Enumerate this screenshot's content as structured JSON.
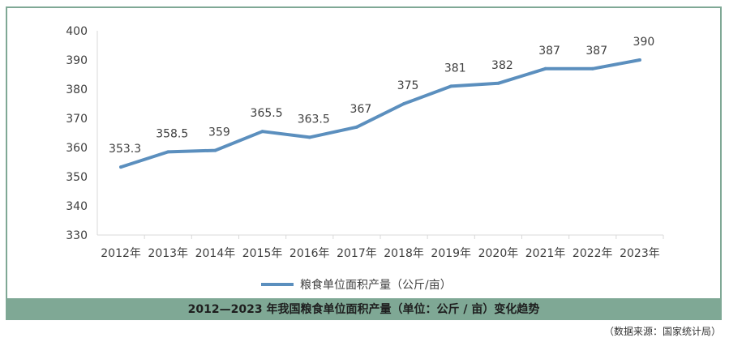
{
  "chart_data": {
    "type": "line",
    "title": "2012—2023 年我国粮食单位面积产量（单位：公斤 / 亩）变化趋势",
    "xlabel": "",
    "ylabel": "",
    "categories": [
      "2012年",
      "2013年",
      "2014年",
      "2015年",
      "2016年",
      "2017年",
      "2018年",
      "2019年",
      "2020年",
      "2021年",
      "2022年",
      "2023年"
    ],
    "series": [
      {
        "name": "粮食单位面积产量（公斤/亩）",
        "values": [
          353.3,
          358.5,
          359,
          365.5,
          363.5,
          367,
          375,
          381,
          382,
          387,
          387,
          390
        ],
        "labels": [
          "353.3",
          "358.5",
          "359",
          "365.5",
          "363.5",
          "367",
          "375",
          "381",
          "382",
          "387",
          "387",
          "390"
        ]
      }
    ],
    "ylim": [
      330,
      400
    ],
    "yticks": [
      "330",
      "340",
      "350",
      "360",
      "370",
      "380",
      "390",
      "400"
    ],
    "grid": false,
    "legend": "bottom-center"
  },
  "colors": {
    "line": "#5b8fbe",
    "frame": "#7fa895",
    "text": "#404040"
  },
  "source": "（数据来源：国家统计局）"
}
